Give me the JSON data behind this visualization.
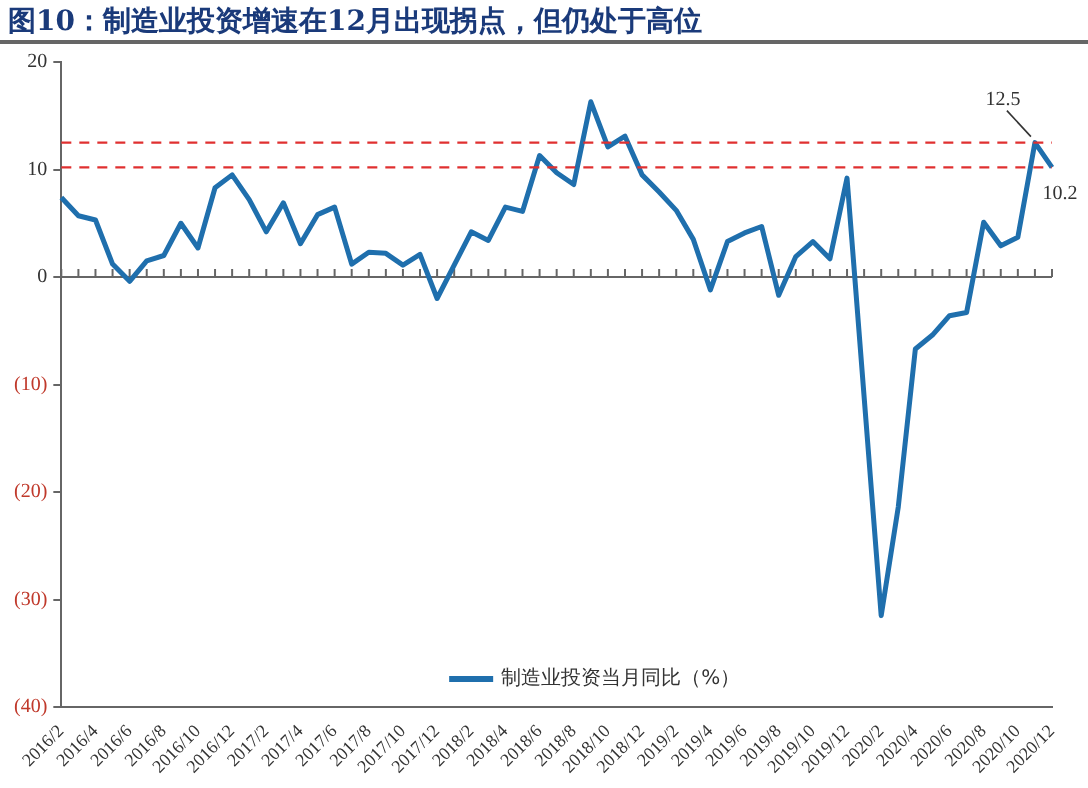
{
  "chart_data": {
    "type": "line",
    "title": "图10：制造业投资增速在12月出现拐点，但仍处于高位",
    "categories": [
      "2016/2",
      null,
      "2016/4",
      null,
      "2016/6",
      null,
      "2016/8",
      null,
      "2016/10",
      null,
      "2016/12",
      null,
      "2017/2",
      null,
      "2017/4",
      null,
      "2017/6",
      null,
      "2017/8",
      null,
      "2017/10",
      null,
      "2017/12",
      null,
      "2018/2",
      null,
      "2018/4",
      null,
      "2018/6",
      null,
      "2018/8",
      null,
      "2018/10",
      null,
      "2018/12",
      null,
      "2019/2",
      null,
      "2019/4",
      null,
      "2019/6",
      null,
      "2019/8",
      null,
      "2019/10",
      null,
      "2019/12",
      null,
      "2020/2",
      null,
      "2020/4",
      null,
      "2020/6",
      null,
      "2020/8",
      null,
      "2020/10",
      null,
      "2020/12"
    ],
    "series": [
      {
        "name": "制造业投资当月同比（%）",
        "color": "#1f6fad",
        "values": [
          7.4,
          5.7,
          5.3,
          1.2,
          -0.4,
          1.5,
          2.0,
          5.0,
          2.7,
          8.3,
          9.5,
          7.2,
          4.2,
          6.9,
          3.1,
          5.8,
          6.5,
          1.2,
          2.3,
          2.2,
          1.1,
          2.1,
          -2.0,
          1.1,
          4.2,
          3.4,
          6.5,
          6.1,
          11.3,
          9.7,
          8.6,
          16.3,
          12.1,
          13.1,
          9.5,
          7.9,
          6.2,
          3.5,
          -1.2,
          3.3,
          4.1,
          4.7,
          -1.7,
          1.9,
          3.3,
          1.7,
          9.2,
          null,
          -31.5,
          -21.4,
          -6.7,
          -5.4,
          -3.6,
          -3.3,
          5.1,
          2.9,
          3.7,
          12.5,
          10.2
        ],
        "value_labels": [
          null,
          null,
          null,
          null,
          null,
          null,
          null,
          null,
          null,
          null,
          null,
          null,
          null,
          null,
          null,
          null,
          null,
          null,
          null,
          null,
          null,
          null,
          null,
          null,
          null,
          null,
          null,
          null,
          null,
          null,
          null,
          null,
          null,
          null,
          null,
          null,
          null,
          null,
          null,
          null,
          null,
          null,
          null,
          null,
          null,
          null,
          null,
          null,
          null,
          null,
          null,
          null,
          null,
          null,
          null,
          null,
          null,
          "12.5",
          "10.2"
        ]
      }
    ],
    "ylim": [
      -40,
      20
    ],
    "yticks": [
      {
        "value": -40,
        "label": "(40)"
      },
      {
        "value": -30,
        "label": "(30)"
      },
      {
        "value": -20,
        "label": "(20)"
      },
      {
        "value": -10,
        "label": "(10)"
      },
      0,
      10,
      20
    ],
    "ref_lines": [
      {
        "axis": "y",
        "value": 12.5,
        "color": "#e03030",
        "line_style": "dashed"
      },
      {
        "axis": "y",
        "value": 10.2,
        "color": "#e03030",
        "line_style": "dashed"
      }
    ],
    "grid": false,
    "legend": "bottom",
    "marker": "none",
    "line_style": "solid"
  }
}
